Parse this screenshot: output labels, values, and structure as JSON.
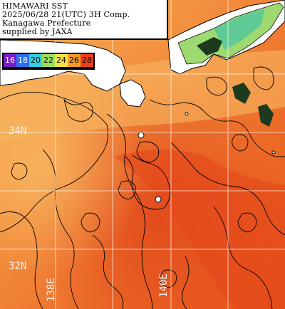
{
  "info": {
    "lines": [
      "HIMAWARI SST",
      "2025/06/28 21(UTC) 3H Comp.",
      "Kanagawa Prefecture",
      "supplied by JAXA"
    ]
  },
  "legend": {
    "items": [
      {
        "label": "16",
        "color": "#7a1ec8",
        "text_color": "#ffffff"
      },
      {
        "label": "18",
        "color": "#2a6ff0",
        "text_color": "#ffffff"
      },
      {
        "label": "20",
        "color": "#2fd0e0",
        "text_color": "#000000"
      },
      {
        "label": "22",
        "color": "#9ae05a",
        "text_color": "#000000"
      },
      {
        "label": "24",
        "color": "#f5e24a",
        "text_color": "#000000"
      },
      {
        "label": "26",
        "color": "#f59a2a",
        "text_color": "#000000"
      },
      {
        "label": "28",
        "color": "#e8401e",
        "text_color": "#000000"
      }
    ]
  },
  "graticule": {
    "lat_labels": [
      "34N",
      "32N"
    ],
    "lon_labels": [
      "138E",
      "140E"
    ]
  },
  "colors": {
    "ocean_warm": "#f08a3a",
    "ocean_hot": "#e8581e",
    "ocean_mid": "#f5a548",
    "land": "#ffffff",
    "coast": "#000000",
    "grid": "#ffffff"
  }
}
